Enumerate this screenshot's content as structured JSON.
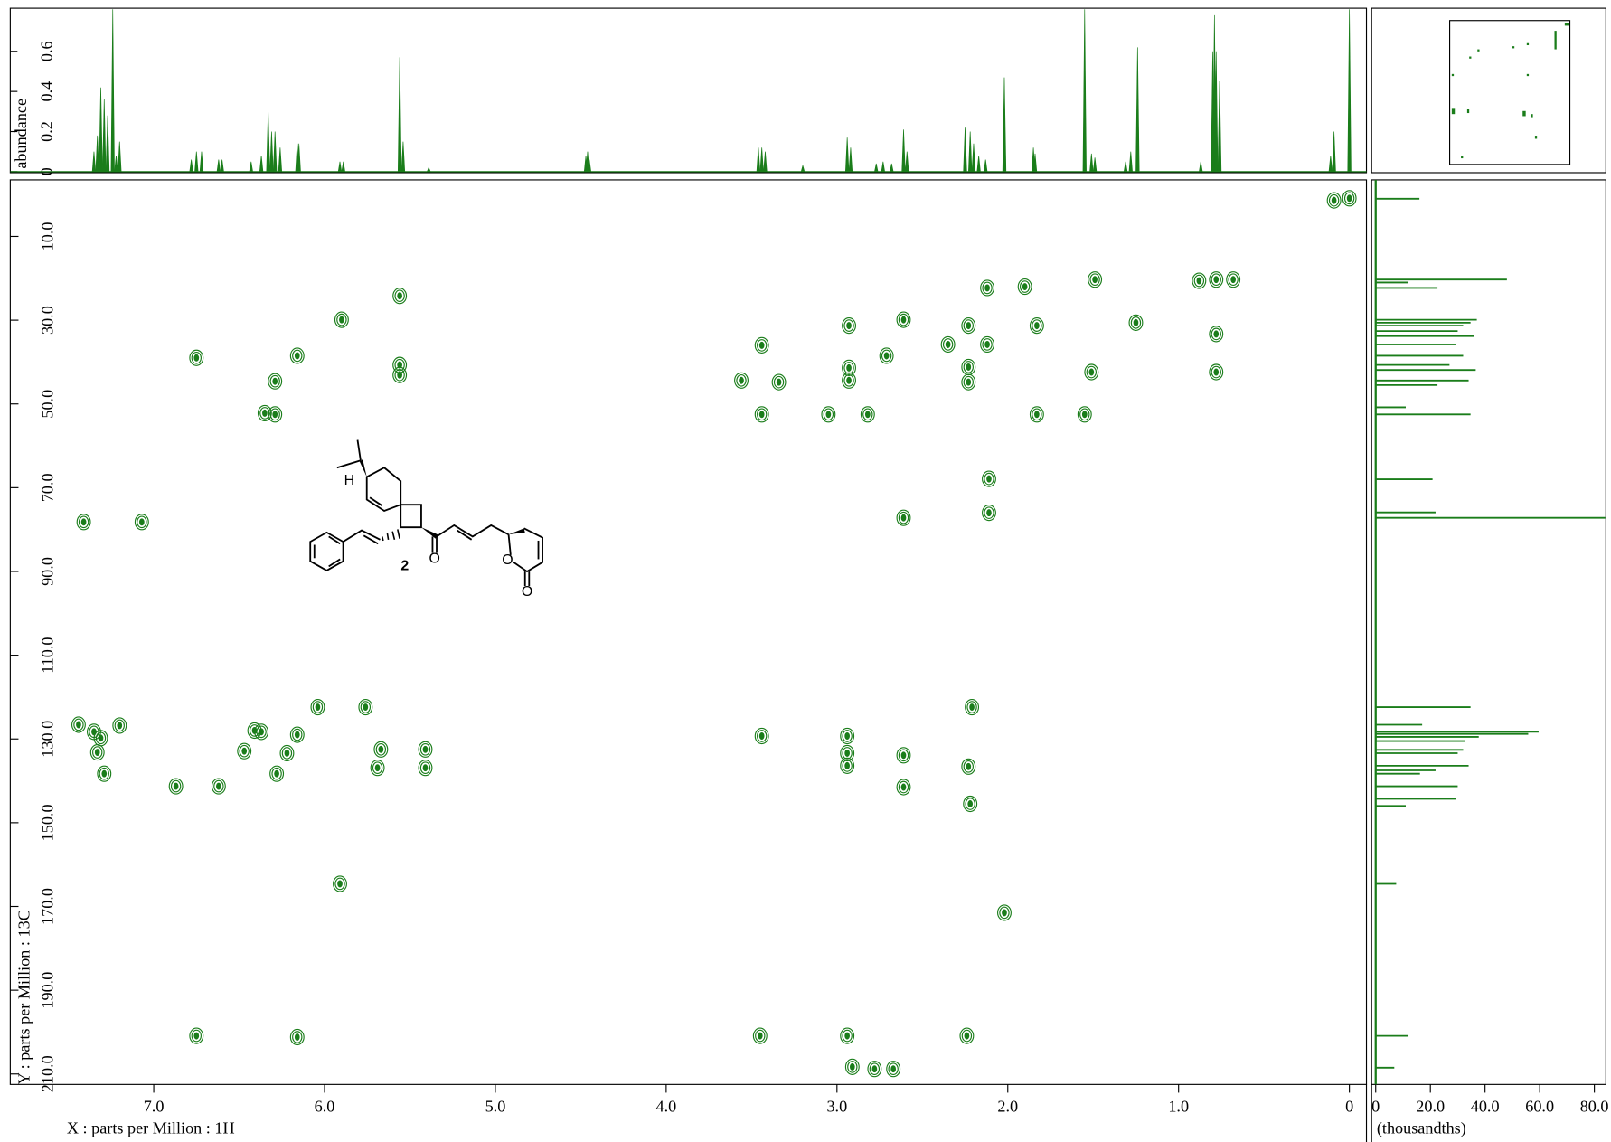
{
  "chart_data": {
    "type": "nmr2d",
    "color": "#1a7d1a",
    "top": {
      "ylabel": "abundance",
      "ylim": [
        -0.005,
        0.815
      ],
      "yticks": [
        0,
        0.2,
        0.4,
        0.6
      ],
      "x": [
        7.35,
        7.33,
        7.31,
        7.29,
        7.27,
        7.24,
        7.22,
        7.2,
        6.78,
        6.75,
        6.72,
        6.62,
        6.6,
        6.43,
        6.37,
        6.33,
        6.31,
        6.29,
        6.26,
        6.16,
        6.15,
        5.91,
        5.89,
        5.56,
        5.54,
        5.39,
        4.47,
        4.46,
        4.45,
        3.46,
        3.44,
        3.42,
        3.2,
        2.94,
        2.92,
        2.77,
        2.73,
        2.68,
        2.61,
        2.59,
        2.25,
        2.22,
        2.2,
        2.17,
        2.13,
        2.02,
        1.85,
        1.84,
        1.55,
        1.51,
        1.49,
        1.31,
        1.28,
        1.24,
        0.87,
        0.8,
        0.79,
        0.78,
        0.76,
        0.11,
        0.09,
        0
      ],
      "values": [
        0.1,
        0.18,
        0.42,
        0.36,
        0.28,
        0.81,
        0.08,
        0.15,
        0.06,
        0.1,
        0.1,
        0.06,
        0.06,
        0.05,
        0.08,
        0.3,
        0.2,
        0.2,
        0.12,
        0.14,
        0.14,
        0.05,
        0.05,
        0.57,
        0.15,
        0.02,
        0.08,
        0.1,
        0.06,
        0.12,
        0.12,
        0.1,
        0.03,
        0.17,
        0.12,
        0.04,
        0.05,
        0.04,
        0.21,
        0.1,
        0.22,
        0.2,
        0.14,
        0.08,
        0.06,
        0.47,
        0.12,
        0.09,
        0.81,
        0.09,
        0.07,
        0.05,
        0.1,
        0.62,
        0.05,
        0.6,
        0.78,
        0.6,
        0.45,
        0.08,
        0.2,
        0.81
      ]
    },
    "main": {
      "xlabel": "X : parts per Million : 1H",
      "ylabel": "Y : parts per Million : 13C",
      "xlim": [
        7.84,
        -0.1
      ],
      "xticks": [
        {
          "value": 7,
          "label": "7.0"
        },
        {
          "value": 6,
          "label": "6.0"
        },
        {
          "value": 5,
          "label": "5.0"
        },
        {
          "value": 4,
          "label": "4.0"
        },
        {
          "value": 3,
          "label": "3.0"
        },
        {
          "value": 2,
          "label": "2.0"
        },
        {
          "value": 1,
          "label": "1.0"
        },
        0
      ],
      "ylim": [
        -3.5,
        212.5
      ],
      "yticks": [
        {
          "value": 10,
          "label": "10.0"
        },
        {
          "value": 30,
          "label": "30.0"
        },
        {
          "value": 50,
          "label": "50.0"
        },
        {
          "value": 70,
          "label": "70.0"
        },
        {
          "value": 90,
          "label": "90.0"
        },
        {
          "value": 110,
          "label": "110.0"
        },
        {
          "value": 130,
          "label": "130.0"
        },
        {
          "value": 150,
          "label": "150.0"
        },
        {
          "value": 170,
          "label": "170.0"
        },
        {
          "value": 190,
          "label": "190.0"
        },
        {
          "value": 210,
          "label": "210.0"
        }
      ],
      "peaks": {
        "x": [
          0.09,
          0,
          0.78,
          0.78,
          0.78,
          0.88,
          0.68,
          1.49,
          2.12,
          1.9,
          1.25,
          1.83,
          2.23,
          2.61,
          2.93,
          2.12,
          2.35,
          2.71,
          3.44,
          2.23,
          2.93,
          2.23,
          2.93,
          3.56,
          3.34,
          3.44,
          3.05,
          2.82,
          1.83,
          1.55,
          1.51,
          5.56,
          5.56,
          5.56,
          5.9,
          6.16,
          6.75,
          6.29,
          6.35,
          6.29,
          2.11,
          2.11,
          2.61,
          7.41,
          7.07,
          2.02,
          5.91,
          7.44,
          7.35,
          7.31,
          7.2,
          7.33,
          7.29,
          6.87,
          6.62,
          6.37,
          6.41,
          6.47,
          6.28,
          6.22,
          6.16,
          6.04,
          5.76,
          5.67,
          5.69,
          5.41,
          5.41,
          3.44,
          2.94,
          2.94,
          2.94,
          2.61,
          2.61,
          2.23,
          2.22,
          2.21,
          6.75,
          6.16,
          3.45,
          2.94,
          2.24,
          2.91,
          2.78,
          2.67
        ],
        "y": [
          1.4,
          0.9,
          20.3,
          33.3,
          42.4,
          20.6,
          20.3,
          20.3,
          22.3,
          22.0,
          30.6,
          31.3,
          31.3,
          29.9,
          31.3,
          35.8,
          35.8,
          38.5,
          36.0,
          41.2,
          41.4,
          44.8,
          44.4,
          44.4,
          44.8,
          52.5,
          52.5,
          52.5,
          52.5,
          52.5,
          42.4,
          24.2,
          40.7,
          43.1,
          29.9,
          38.5,
          39.0,
          44.6,
          52.2,
          52.5,
          67.9,
          76.0,
          77.2,
          78.2,
          78.2,
          171.5,
          164.6,
          126.6,
          128.3,
          129.8,
          126.8,
          133.2,
          138.3,
          141.3,
          141.3,
          128.3,
          128.0,
          132.9,
          138.3,
          133.4,
          129.0,
          122.4,
          122.4,
          132.5,
          136.9,
          132.5,
          136.9,
          129.3,
          129.3,
          133.4,
          136.4,
          133.9,
          141.5,
          136.6,
          145.5,
          122.4,
          200.9,
          201.2,
          200.9,
          200.9,
          200.9,
          208.3,
          208.8,
          208.8
        ]
      }
    },
    "side": {
      "xlabel": "(thousandths)",
      "xlim": [
        -1.5,
        84.2
      ],
      "xticks": [
        0,
        {
          "value": 20,
          "label": "20.0"
        },
        {
          "value": 40,
          "label": "40.0"
        },
        {
          "value": 60,
          "label": "60.0"
        },
        {
          "value": 80,
          "label": "80.0"
        }
      ],
      "y": [
        1.0,
        20.3,
        21.0,
        22.3,
        29.9,
        30.6,
        31.3,
        32.6,
        33.8,
        35.8,
        38.5,
        40.7,
        41.9,
        44.4,
        45.5,
        50.8,
        52.5,
        68.0,
        75.9,
        77.2,
        122.4,
        126.6,
        128.3,
        128.8,
        129.5,
        130.5,
        132.6,
        133.4,
        136.4,
        137.5,
        138.3,
        141.3,
        144.3,
        146.0,
        164.6,
        200.9,
        208.5
      ],
      "values": [
        16,
        48,
        12,
        22.6,
        37,
        34.7,
        32,
        30,
        36,
        29.4,
        32,
        27,
        36.6,
        34,
        22.6,
        11,
        34.7,
        20.8,
        21.9,
        84,
        34.7,
        17,
        59.6,
        55.8,
        37.7,
        32.8,
        32,
        30,
        34,
        21.9,
        16.2,
        30,
        29.4,
        11,
        7.5,
        12,
        6.8
      ]
    },
    "annotations": [
      "H",
      "O",
      "O",
      "O",
      "2"
    ]
  }
}
